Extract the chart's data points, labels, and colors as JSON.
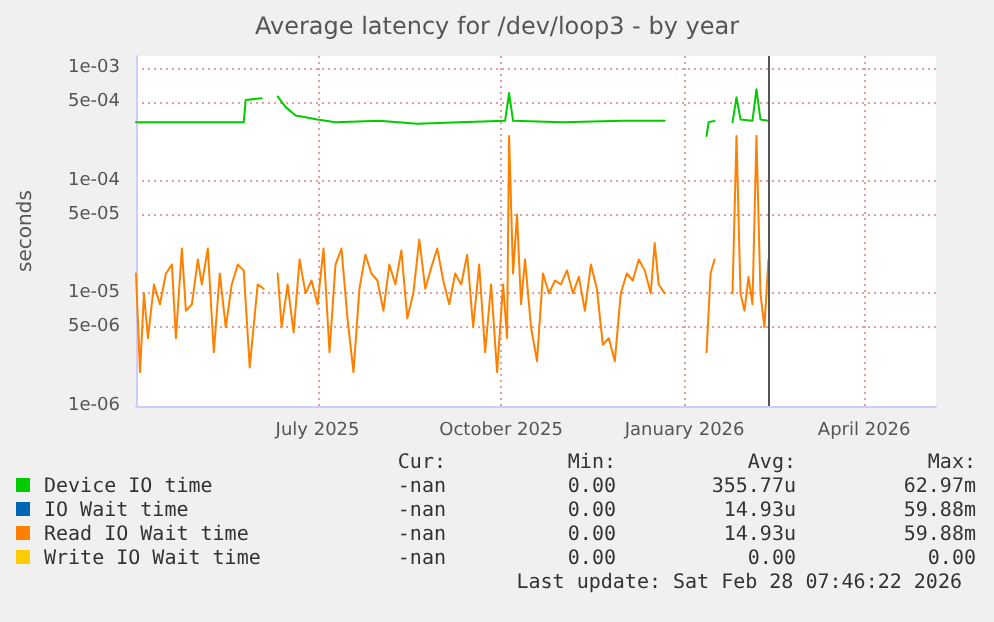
{
  "chart_data": {
    "type": "line",
    "title": "Average latency for /dev/loop3 - by year",
    "ylabel": "seconds",
    "log": "y",
    "grid": true,
    "legend": "bottom",
    "marker": "none",
    "line_style": "solid",
    "xlim": [
      "2025-04-01",
      "2026-05-07"
    ],
    "xticks": [
      {
        "value": "2025-07-01",
        "label": "July 2025"
      },
      {
        "value": "2025-10-01",
        "label": "October 2025"
      },
      {
        "value": "2026-01-01",
        "label": "January 2026"
      },
      {
        "value": "2026-04-01",
        "label": "April 2026"
      }
    ],
    "ylim": [
      1e-06,
      0.00128
    ],
    "yticks": [
      {
        "value": 1e-06,
        "label": "1e-06"
      },
      {
        "value": 5e-06,
        "label": "5e-06"
      },
      {
        "value": 1e-05,
        "label": "1e-05"
      },
      {
        "value": 5e-05,
        "label": "5e-05"
      },
      {
        "value": 0.0001,
        "label": "1e-04"
      },
      {
        "value": 0.0005,
        "label": "5e-04"
      },
      {
        "value": 0.001,
        "label": "1e-03"
      }
    ],
    "ref_lines": [
      {
        "axis": "x",
        "value": "2026-02-12",
        "color": "#555555"
      }
    ],
    "series": [
      {
        "name": "Device IO time",
        "color": "#00cc00",
        "x": [
          "2025-04-01",
          "2025-04-20",
          "2025-05-10",
          "2025-05-25",
          "2025-05-26",
          "2025-06-03",
          "2025-06-07",
          "2025-06-11",
          "2025-06-15",
          "2025-06-20",
          "2025-07-01",
          "2025-07-10",
          "2025-08-01",
          "2025-08-20",
          "2025-09-10",
          "2025-10-03",
          "2025-10-05",
          "2025-10-07",
          "2025-11-01",
          "2025-12-01",
          "2025-12-22",
          "2025-12-28",
          "2026-01-12",
          "2026-01-13",
          "2026-01-16",
          "2026-01-20",
          "2026-01-25",
          "2026-01-27",
          "2026-01-29",
          "2026-02-04",
          "2026-02-06",
          "2026-02-08",
          "2026-02-12"
        ],
        "values": [
          0.00033,
          0.00033,
          0.00033,
          0.00033,
          0.00052,
          0.00054,
          null,
          0.00056,
          0.00045,
          0.00038,
          0.00035,
          0.00033,
          0.00034,
          0.00032,
          0.00033,
          0.00034,
          0.0006,
          0.00034,
          0.00033,
          0.00034,
          0.00034,
          null,
          0.00025,
          0.00033,
          0.00034,
          null,
          0.00033,
          0.00055,
          0.00035,
          0.00034,
          0.00065,
          0.00035,
          0.00034
        ]
      },
      {
        "name": "IO Wait time",
        "color": "#0066b3"
      },
      {
        "name": "Read IO Wait time",
        "color": "#ff8000",
        "x": [
          "2025-04-01",
          "2025-04-03",
          "2025-04-05",
          "2025-04-07",
          "2025-04-10",
          "2025-04-13",
          "2025-04-16",
          "2025-04-19",
          "2025-04-21",
          "2025-04-24",
          "2025-04-26",
          "2025-04-29",
          "2025-05-02",
          "2025-05-04",
          "2025-05-07",
          "2025-05-10",
          "2025-05-13",
          "2025-05-16",
          "2025-05-19",
          "2025-05-22",
          "2025-05-25",
          "2025-05-28",
          "2025-06-01",
          "2025-06-04",
          "2025-06-07",
          "2025-06-11",
          "2025-06-13",
          "2025-06-16",
          "2025-06-19",
          "2025-06-22",
          "2025-06-25",
          "2025-06-28",
          "2025-07-01",
          "2025-07-04",
          "2025-07-07",
          "2025-07-10",
          "2025-07-13",
          "2025-07-16",
          "2025-07-19",
          "2025-07-22",
          "2025-07-25",
          "2025-07-28",
          "2025-07-31",
          "2025-08-03",
          "2025-08-06",
          "2025-08-09",
          "2025-08-12",
          "2025-08-15",
          "2025-08-18",
          "2025-08-21",
          "2025-08-24",
          "2025-08-27",
          "2025-08-30",
          "2025-09-02",
          "2025-09-05",
          "2025-09-08",
          "2025-09-11",
          "2025-09-14",
          "2025-09-17",
          "2025-09-20",
          "2025-09-23",
          "2025-09-26",
          "2025-09-29",
          "2025-10-02",
          "2025-10-04",
          "2025-10-05",
          "2025-10-07",
          "2025-10-09",
          "2025-10-11",
          "2025-10-13",
          "2025-10-16",
          "2025-10-19",
          "2025-10-22",
          "2025-10-25",
          "2025-10-28",
          "2025-10-31",
          "2025-11-03",
          "2025-11-06",
          "2025-11-09",
          "2025-11-12",
          "2025-11-15",
          "2025-11-18",
          "2025-11-21",
          "2025-11-24",
          "2025-11-27",
          "2025-11-30",
          "2025-12-03",
          "2025-12-06",
          "2025-12-09",
          "2025-12-12",
          "2025-12-15",
          "2025-12-17",
          "2025-12-19",
          "2025-12-22",
          "2025-12-25",
          "2026-01-12",
          "2026-01-14",
          "2026-01-16",
          "2026-01-20",
          "2026-01-25",
          "2026-01-27",
          "2026-01-29",
          "2026-01-31",
          "2026-02-02",
          "2026-02-04",
          "2026-02-06",
          "2026-02-08",
          "2026-02-10",
          "2026-02-12"
        ],
        "values": [
          1.5e-05,
          2e-06,
          1e-05,
          4e-06,
          1.2e-05,
          8e-06,
          1.5e-05,
          1.8e-05,
          4e-06,
          2.5e-05,
          7e-06,
          8e-06,
          2e-05,
          1.2e-05,
          2.5e-05,
          3e-06,
          1.5e-05,
          5e-06,
          1.2e-05,
          1.8e-05,
          1.6e-05,
          2.2e-06,
          1.2e-05,
          1.1e-05,
          null,
          1.5e-05,
          5e-06,
          1.2e-05,
          4.5e-06,
          2e-05,
          1e-05,
          1.3e-05,
          8e-06,
          2.5e-05,
          3e-06,
          1.8e-05,
          2.5e-05,
          6e-06,
          2e-06,
          1.1e-05,
          2.2e-05,
          1.5e-05,
          1.3e-05,
          7e-06,
          1.8e-05,
          1.2e-05,
          2.4e-05,
          6e-06,
          1e-05,
          3e-05,
          1.1e-05,
          1.7e-05,
          2.5e-05,
          1.3e-05,
          8e-06,
          1.5e-05,
          1.2e-05,
          2.2e-05,
          5e-06,
          1.8e-05,
          3e-06,
          1.2e-05,
          2e-06,
          1.2e-05,
          4e-06,
          0.00025,
          1.5e-05,
          5e-05,
          8e-06,
          2e-05,
          5e-06,
          2.5e-06,
          1.5e-05,
          1e-05,
          1.3e-05,
          1.2e-05,
          1.6e-05,
          1e-05,
          1.4e-05,
          7e-06,
          1.8e-05,
          1.1e-05,
          3.5e-06,
          4e-06,
          2.5e-06,
          1e-05,
          1.5e-05,
          1.3e-05,
          2e-05,
          1.6e-05,
          1e-05,
          2.8e-05,
          1.2e-05,
          1e-05,
          null,
          3e-06,
          1.5e-05,
          2e-05,
          null,
          1e-05,
          0.00025,
          1e-05,
          7e-06,
          1.4e-05,
          8e-06,
          0.00025,
          1e-05,
          5e-06,
          2e-05
        ]
      },
      {
        "name": "Write IO Wait time",
        "color": "#ffcc00"
      }
    ],
    "annotations": [
      "Cur:",
      "Min:",
      "Avg:",
      "Max:",
      "-nan",
      "0.00",
      "355.77u",
      "62.97m",
      "-nan",
      "0.00",
      "14.93u",
      "59.88m",
      "-nan",
      "0.00",
      "14.93u",
      "59.88m",
      "-nan",
      "0.00",
      "0.00",
      "0.00",
      "Last update: Sat Feb 28 07:46:22 2026"
    ]
  }
}
